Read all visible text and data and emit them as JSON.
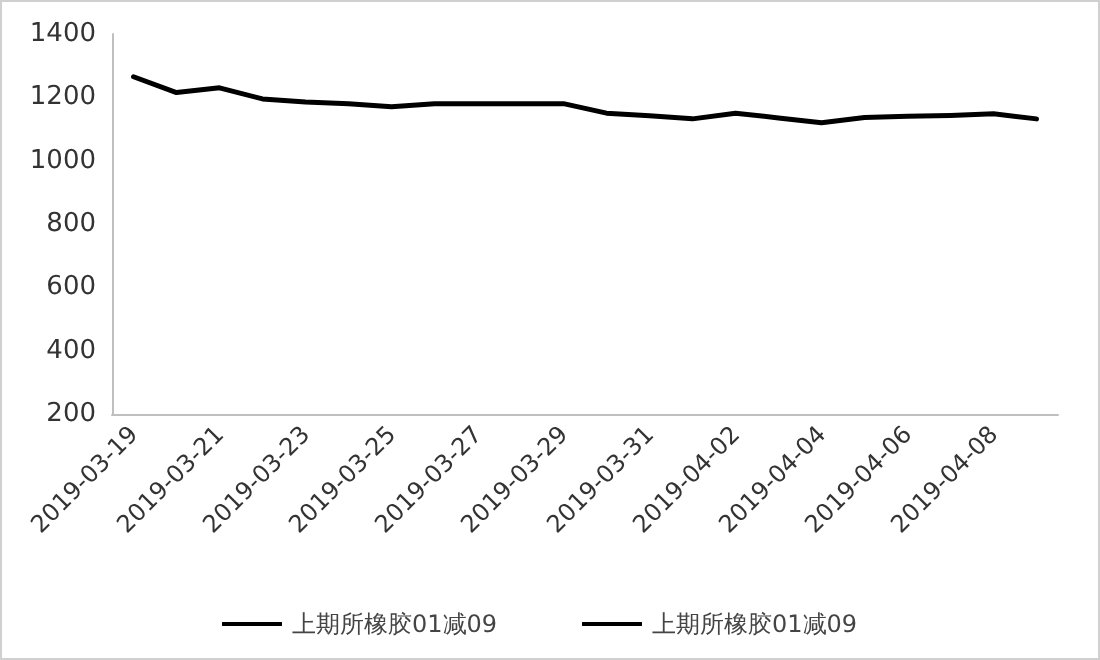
{
  "chart_data": {
    "type": "line",
    "categories": [
      "2019-03-19",
      null,
      "2019-03-21",
      null,
      "2019-03-23",
      null,
      "2019-03-25",
      null,
      "2019-03-27",
      null,
      "2019-03-29",
      null,
      "2019-03-31",
      null,
      "2019-04-02",
      null,
      "2019-04-04",
      null,
      "2019-04-06",
      null,
      "2019-04-08",
      null
    ],
    "series": [
      {
        "name": "上期所橡胶01减09",
        "color": "#000000",
        "values": [
          1265,
          1215,
          1230,
          1195,
          1185,
          1180,
          1170,
          1180,
          1180,
          1180,
          1180,
          1150,
          1142,
          1132,
          1150,
          1135,
          1120,
          1136,
          1140,
          1143,
          1148,
          1132
        ]
      },
      {
        "name": "上期所橡胶01减09",
        "color": "#000000",
        "values": [
          null,
          null,
          null,
          null,
          null,
          null,
          null,
          null,
          null,
          null,
          null,
          null,
          null,
          null,
          null,
          null,
          null,
          null,
          null,
          null,
          null,
          null
        ]
      }
    ],
    "ylim": [
      200,
      1400
    ],
    "yticks": [
      200,
      400,
      600,
      800,
      1000,
      1200,
      1400
    ],
    "grid": false,
    "legend": "bottom",
    "marker": "none",
    "line_style": "solid"
  }
}
